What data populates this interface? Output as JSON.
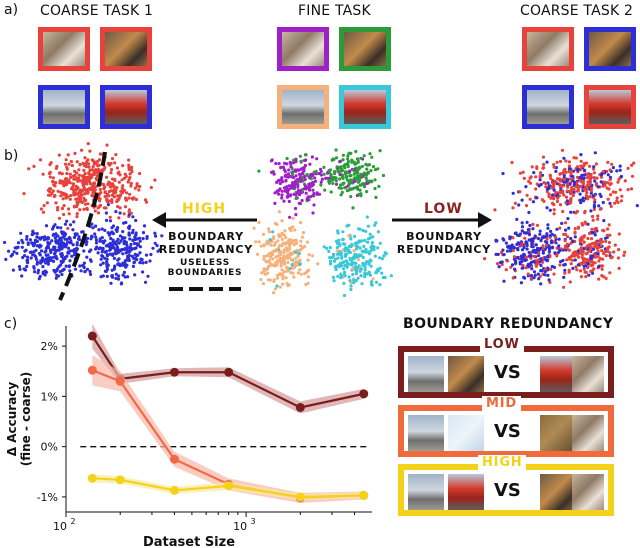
{
  "panel_labels": {
    "a": "a)",
    "b": "b)",
    "c": "c)"
  },
  "panel_a": {
    "coarse1_title": "COARSE TASK 1",
    "fine_title": "FINE TASK",
    "coarse2_title": "COARSE TASK 2",
    "colors": {
      "red": "#e8423d",
      "blue": "#2e2ed6",
      "purple": "#a020c8",
      "green": "#2c9c3a",
      "orange": "#f6b07a",
      "cyan": "#38c8d8"
    }
  },
  "panel_b": {
    "high_label": "HIGH",
    "high_sub": "BOUNDARY\nREDUNDANCY",
    "low_label": "LOW",
    "low_sub": "BOUNDARY\nREDUNDANCY",
    "useless_label": "USELESS\nBOUNDARIES"
  },
  "panel_c": {
    "legend_title": "BOUNDARY REDUNDANCY",
    "boxes": [
      {
        "label": "LOW",
        "color": "#7a1d1d",
        "vs": "VS"
      },
      {
        "label": "MID",
        "color": "#f06a3c",
        "vs": "VS"
      },
      {
        "label": "HIGH",
        "color": "#f5d21a",
        "vs": "VS"
      }
    ]
  },
  "chart_data": {
    "type": "line",
    "xlabel": "Dataset Size",
    "ylabel": "Δ Accuracy\n(fine - coarse)",
    "xscale": "log",
    "xlim": [
      100,
      5000
    ],
    "ylim": [
      -1.3,
      2.4
    ],
    "x_ticks": [
      {
        "value": 100,
        "base": "10",
        "exp": "2"
      },
      {
        "value": 1000,
        "base": "10",
        "exp": "3"
      }
    ],
    "y_ticks": [
      {
        "value": 2,
        "label": "2%"
      },
      {
        "value": 1,
        "label": "1%"
      },
      {
        "value": 0,
        "label": "0%"
      },
      {
        "value": -1,
        "label": "-1%"
      }
    ],
    "reference_line": 0,
    "series": [
      {
        "color": "#7a1d1d",
        "band": "#d39a9a",
        "x": [
          140,
          200,
          400,
          800,
          2000,
          4500
        ],
        "values": [
          2.2,
          1.35,
          1.48,
          1.48,
          0.78,
          1.05
        ],
        "err": [
          0.25,
          0.1,
          0.08,
          0.1,
          0.12,
          0.1
        ]
      },
      {
        "color": "#f06a4a",
        "band": "#f7b8a8",
        "x": [
          140,
          200,
          400,
          800,
          2000,
          4500
        ],
        "values": [
          1.52,
          1.3,
          -0.25,
          -0.75,
          -1.02,
          -0.97
        ],
        "err": [
          0.3,
          0.2,
          0.15,
          0.12,
          0.1,
          0.08
        ]
      },
      {
        "color": "#f5d21a",
        "band": "#f9eaa0",
        "x": [
          140,
          200,
          400,
          800,
          2000,
          4500
        ],
        "values": [
          -0.63,
          -0.66,
          -0.87,
          -0.78,
          -1.0,
          -0.97
        ],
        "err": [
          0.08,
          0.07,
          0.07,
          0.08,
          0.06,
          0.06
        ]
      }
    ]
  }
}
